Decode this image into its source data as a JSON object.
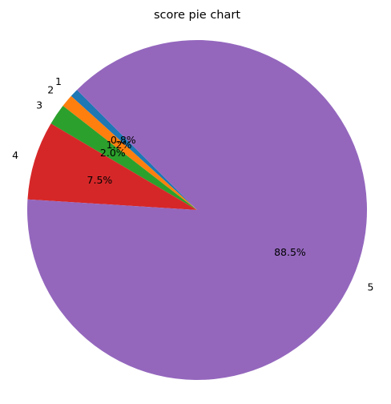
{
  "chart_data": {
    "type": "pie",
    "title": "score pie chart",
    "slices": [
      {
        "label": "1",
        "value": 0.8,
        "pct_label": "0.8%",
        "color": "#1f77b4"
      },
      {
        "label": "2",
        "value": 1.2,
        "pct_label": "1.2%",
        "color": "#ff7f0e"
      },
      {
        "label": "3",
        "value": 2.0,
        "pct_label": "2.0%",
        "color": "#2ca02c"
      },
      {
        "label": "4",
        "value": 7.5,
        "pct_label": "7.5%",
        "color": "#d62728"
      },
      {
        "label": "5",
        "value": 88.5,
        "pct_label": "88.5%",
        "color": "#9467bd"
      }
    ],
    "start_angle_deg": 135,
    "direction": "counterclockwise",
    "legend": "none"
  }
}
